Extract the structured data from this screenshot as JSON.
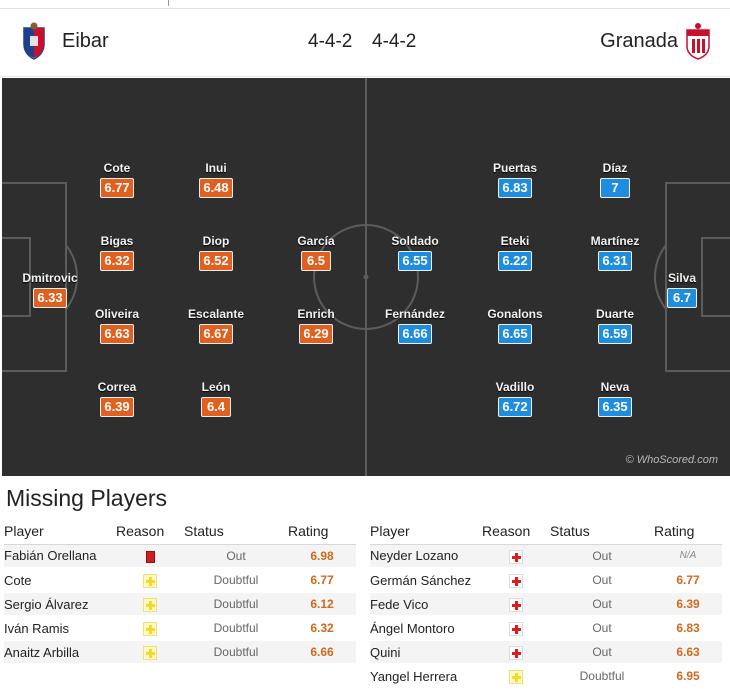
{
  "header": {
    "home_team": "Eibar",
    "away_team": "Granada",
    "home_formation": "4-4-2",
    "away_formation": "4-4-2"
  },
  "pitch": {
    "watermark": "© WhoScored.com",
    "home_players": [
      {
        "name": "Dmitrovic",
        "rating": "6.33"
      },
      {
        "name": "Cote",
        "rating": "6.77"
      },
      {
        "name": "Bigas",
        "rating": "6.32"
      },
      {
        "name": "Oliveira",
        "rating": "6.63"
      },
      {
        "name": "Correa",
        "rating": "6.39"
      },
      {
        "name": "Inui",
        "rating": "6.48"
      },
      {
        "name": "Diop",
        "rating": "6.52"
      },
      {
        "name": "Escalante",
        "rating": "6.67"
      },
      {
        "name": "León",
        "rating": "6.4"
      },
      {
        "name": "García",
        "rating": "6.5"
      },
      {
        "name": "Enrich",
        "rating": "6.29"
      }
    ],
    "away_players": [
      {
        "name": "Soldado",
        "rating": "6.55"
      },
      {
        "name": "Fernández",
        "rating": "6.66"
      },
      {
        "name": "Puertas",
        "rating": "6.83"
      },
      {
        "name": "Eteki",
        "rating": "6.22"
      },
      {
        "name": "Gonalons",
        "rating": "6.65"
      },
      {
        "name": "Vadillo",
        "rating": "6.72"
      },
      {
        "name": "Díaz",
        "rating": "7"
      },
      {
        "name": "Martínez",
        "rating": "6.31"
      },
      {
        "name": "Duarte",
        "rating": "6.59"
      },
      {
        "name": "Neva",
        "rating": "6.35"
      },
      {
        "name": "Silva",
        "rating": "6.7"
      }
    ]
  },
  "missing": {
    "title": "Missing Players",
    "columns": {
      "player": "Player",
      "reason": "Reason",
      "status": "Status",
      "rating": "Rating"
    },
    "home": [
      {
        "player": "Fabián Orellana",
        "reason_icon": "red-card-icon",
        "status": "Out",
        "rating": "6.98"
      },
      {
        "player": "Cote",
        "reason_icon": "doubtful-icon",
        "status": "Doubtful",
        "rating": "6.77"
      },
      {
        "player": "Sergio Álvarez",
        "reason_icon": "doubtful-icon",
        "status": "Doubtful",
        "rating": "6.12"
      },
      {
        "player": "Iván Ramis",
        "reason_icon": "doubtful-icon",
        "status": "Doubtful",
        "rating": "6.32"
      },
      {
        "player": "Anaitz Arbilla",
        "reason_icon": "doubtful-icon",
        "status": "Doubtful",
        "rating": "6.66"
      }
    ],
    "away": [
      {
        "player": "Neyder Lozano",
        "reason_icon": "injury-icon",
        "status": "Out",
        "rating": "N/A"
      },
      {
        "player": "Germán Sánchez",
        "reason_icon": "injury-icon",
        "status": "Out",
        "rating": "6.77"
      },
      {
        "player": "Fede Vico",
        "reason_icon": "injury-icon",
        "status": "Out",
        "rating": "6.39"
      },
      {
        "player": "Ángel Montoro",
        "reason_icon": "injury-icon",
        "status": "Out",
        "rating": "6.83"
      },
      {
        "player": "Quini",
        "reason_icon": "injury-icon",
        "status": "Out",
        "rating": "6.63"
      },
      {
        "player": "Yangel Herrera",
        "reason_icon": "doubtful-icon",
        "status": "Doubtful",
        "rating": "6.95"
      }
    ]
  },
  "colors": {
    "home_rating_bg": "#e0611f",
    "away_rating_bg": "#1e8de0",
    "pitch_bg": "#2e2e2e",
    "missing_rating_text": "#d2691e"
  }
}
